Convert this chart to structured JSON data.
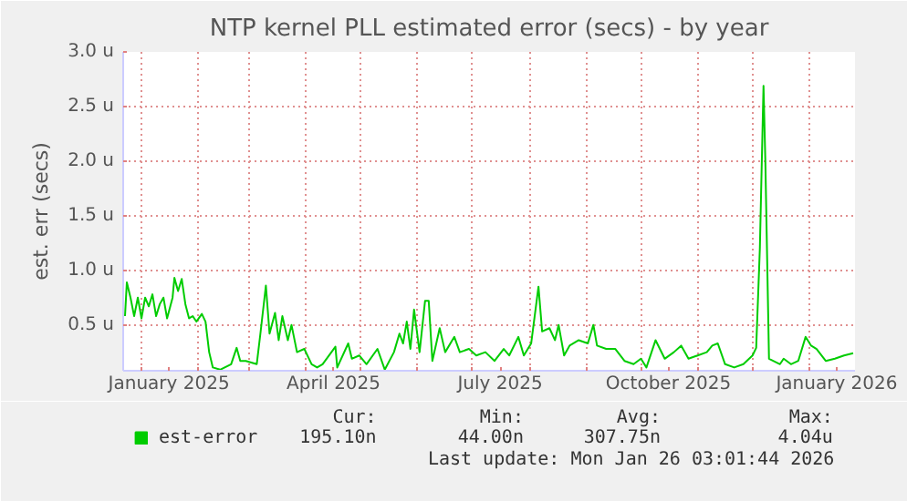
{
  "chart_data": {
    "type": "line",
    "title": "NTP kernel PLL estimated error (secs) - by year",
    "ylabel": "est. err (secs)",
    "x": [
      "2024-12-23",
      "2024-12-24",
      "2024-12-26",
      "2024-12-28",
      "2024-12-30",
      "2025-01-01",
      "2025-01-03",
      "2025-01-05",
      "2025-01-07",
      "2025-01-09",
      "2025-01-11",
      "2025-01-13",
      "2025-01-15",
      "2025-01-18",
      "2025-01-19",
      "2025-01-21",
      "2025-01-23",
      "2025-01-25",
      "2025-01-27",
      "2025-01-29",
      "2025-01-31",
      "2025-02-03",
      "2025-02-05",
      "2025-02-07",
      "2025-02-09",
      "2025-02-13",
      "2025-02-19",
      "2025-02-22",
      "2025-02-24",
      "2025-02-27",
      "2025-03-05",
      "2025-03-07",
      "2025-03-10",
      "2025-03-12",
      "2025-03-15",
      "2025-03-17",
      "2025-03-19",
      "2025-03-22",
      "2025-03-24",
      "2025-03-27",
      "2025-03-31",
      "2025-04-04",
      "2025-04-07",
      "2025-04-10",
      "2025-04-17",
      "2025-04-18",
      "2025-04-24",
      "2025-04-26",
      "2025-04-30",
      "2025-05-04",
      "2025-05-10",
      "2025-05-14",
      "2025-05-19",
      "2025-05-22",
      "2025-05-24",
      "2025-05-26",
      "2025-05-28",
      "2025-05-30",
      "2025-06-02",
      "2025-06-05",
      "2025-06-07",
      "2025-06-09",
      "2025-06-13",
      "2025-06-16",
      "2025-06-21",
      "2025-06-24",
      "2025-06-29",
      "2025-07-03",
      "2025-07-08",
      "2025-07-13",
      "2025-07-18",
      "2025-07-21",
      "2025-07-26",
      "2025-07-29",
      "2025-08-02",
      "2025-08-06",
      "2025-08-08",
      "2025-08-12",
      "2025-08-15",
      "2025-08-17",
      "2025-08-20",
      "2025-08-23",
      "2025-08-28",
      "2025-09-02",
      "2025-09-05",
      "2025-09-07",
      "2025-09-12",
      "2025-09-17",
      "2025-09-22",
      "2025-09-27",
      "2025-10-01",
      "2025-10-04",
      "2025-10-09",
      "2025-10-14",
      "2025-10-19",
      "2025-10-23",
      "2025-10-27",
      "2025-11-01",
      "2025-11-06",
      "2025-11-09",
      "2025-11-12",
      "2025-11-16",
      "2025-11-21",
      "2025-11-26",
      "2025-12-01",
      "2025-12-03",
      "2025-12-05",
      "2025-12-07",
      "2025-12-08",
      "2025-12-10",
      "2025-12-16",
      "2025-12-18",
      "2025-12-22",
      "2025-12-26",
      "2025-12-30",
      "2026-01-02",
      "2026-01-05",
      "2026-01-10",
      "2026-01-15",
      "2026-01-20",
      "2026-01-25"
    ],
    "series": [
      {
        "name": "est-error",
        "color": "#00cc00",
        "values": [
          0.58,
          0.89,
          0.75,
          0.58,
          0.75,
          0.56,
          0.75,
          0.67,
          0.78,
          0.58,
          0.69,
          0.75,
          0.56,
          0.75,
          0.93,
          0.81,
          0.92,
          0.69,
          0.56,
          0.58,
          0.53,
          0.6,
          0.53,
          0.25,
          0.11,
          0.09,
          0.14,
          0.29,
          0.17,
          0.17,
          0.14,
          0.42,
          0.86,
          0.42,
          0.61,
          0.36,
          0.58,
          0.36,
          0.5,
          0.25,
          0.28,
          0.14,
          0.11,
          0.14,
          0.3,
          0.11,
          0.33,
          0.19,
          0.22,
          0.14,
          0.28,
          0.09,
          0.25,
          0.42,
          0.33,
          0.53,
          0.28,
          0.64,
          0.25,
          0.72,
          0.72,
          0.17,
          0.47,
          0.25,
          0.39,
          0.25,
          0.28,
          0.22,
          0.25,
          0.17,
          0.28,
          0.22,
          0.39,
          0.22,
          0.33,
          0.85,
          0.44,
          0.47,
          0.36,
          0.5,
          0.22,
          0.31,
          0.36,
          0.33,
          0.5,
          0.31,
          0.28,
          0.28,
          0.17,
          0.14,
          0.19,
          0.11,
          0.36,
          0.19,
          0.25,
          0.31,
          0.19,
          0.22,
          0.25,
          0.31,
          0.33,
          0.14,
          0.11,
          0.14,
          0.22,
          0.29,
          1.2,
          2.69,
          2.0,
          0.19,
          0.14,
          0.19,
          0.14,
          0.17,
          0.39,
          0.31,
          0.28,
          0.17,
          0.19,
          0.22,
          0.24
        ]
      }
    ],
    "xlim": [
      "2024-12-22",
      "2026-01-26"
    ],
    "xticks": [
      {
        "value": "2025-01-01",
        "label": null
      },
      {
        "value": "2025-01-16",
        "label": "January 2025"
      },
      {
        "value": "2025-02-01",
        "label": null
      },
      {
        "value": "2025-03-01",
        "label": null
      },
      {
        "value": "2025-04-01",
        "label": null
      },
      {
        "value": "2025-04-16",
        "label": "April 2025"
      },
      {
        "value": "2025-05-01",
        "label": null
      },
      {
        "value": "2025-06-01",
        "label": null
      },
      {
        "value": "2025-07-01",
        "label": null
      },
      {
        "value": "2025-07-16",
        "label": "July 2025"
      },
      {
        "value": "2025-08-01",
        "label": null
      },
      {
        "value": "2025-09-01",
        "label": null
      },
      {
        "value": "2025-10-01",
        "label": null
      },
      {
        "value": "2025-10-16",
        "label": "October 2025"
      },
      {
        "value": "2025-11-01",
        "label": null
      },
      {
        "value": "2025-12-01",
        "label": null
      },
      {
        "value": "2026-01-01",
        "label": null
      },
      {
        "value": "2026-01-16",
        "label": "January 2026"
      }
    ],
    "ylim": [
      0.08,
      3.0
    ],
    "yticks": [
      {
        "value": 0.5,
        "label": "0.5 u"
      },
      {
        "value": 1.0,
        "label": "1.0 u"
      },
      {
        "value": 1.5,
        "label": "1.5 u"
      },
      {
        "value": 2.0,
        "label": "2.0 u"
      },
      {
        "value": 2.5,
        "label": "2.5 u"
      },
      {
        "value": 3.0,
        "label": "3.0 u"
      }
    ],
    "grid": true,
    "legend": "bottom left",
    "line_style": "solid",
    "annotations": [
      "Cur:",
      "Min:",
      "Avg:",
      "Max:",
      "195.10n",
      "44.00n",
      "307.75n",
      "4.04u",
      "Last update: Mon Jan 26 03:01:44 2026"
    ]
  }
}
